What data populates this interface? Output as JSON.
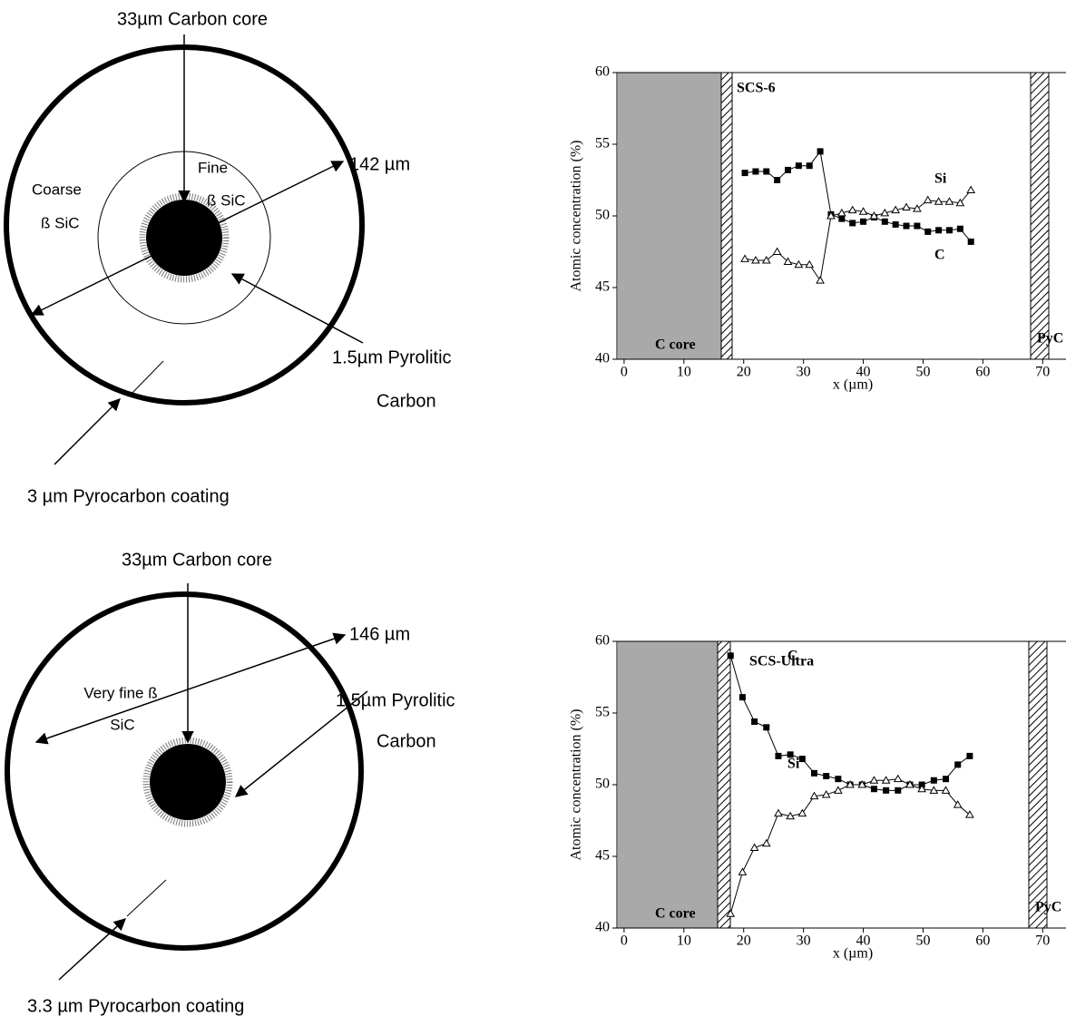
{
  "diagrams": [
    {
      "core_label": "33µm Carbon core",
      "diameter_label": "142 µm",
      "region_labels": [
        "Coarse",
        "ß SiC",
        "Fine",
        "ß SiC"
      ],
      "pyrolitic_label": [
        "1.5µm Pyrolitic",
        "Carbon"
      ],
      "coating_label": "3 µm Pyrocarbon coating"
    },
    {
      "core_label": "33µm Carbon core",
      "diameter_label": "146 µm",
      "region_labels": [
        "Very fine ß",
        "SiC"
      ],
      "pyrolitic_label": [
        "1.5µm Pyrolitic",
        "Carbon"
      ],
      "coating_label": "3.3 µm Pyrocarbon coating"
    }
  ],
  "chart_data": [
    {
      "type": "line",
      "title": "SCS-6",
      "x_label": "x (µm)",
      "y_label": "Atomic concentration (%)",
      "x": [
        20.2,
        22.0,
        23.8,
        25.6,
        27.4,
        29.2,
        31.0,
        32.8,
        34.6,
        36.4,
        38.2,
        40.0,
        41.8,
        43.6,
        45.4,
        47.2,
        49.0,
        50.8,
        52.6,
        54.4,
        56.2,
        58.0
      ],
      "series": [
        {
          "name": "C",
          "color": "#000000",
          "marker": "square",
          "values": [
            53.0,
            53.1,
            53.1,
            52.5,
            53.2,
            53.5,
            53.5,
            54.5,
            50.1,
            49.8,
            49.5,
            49.6,
            49.9,
            49.6,
            49.4,
            49.3,
            49.3,
            48.9,
            49.0,
            49.0,
            49.1,
            48.2
          ]
        },
        {
          "name": "Si",
          "color": "#000000",
          "marker": "triangle",
          "values": [
            47.0,
            46.9,
            46.9,
            47.5,
            46.8,
            46.6,
            46.6,
            45.5,
            50.0,
            50.2,
            50.4,
            50.3,
            50.0,
            50.2,
            50.4,
            50.6,
            50.5,
            51.1,
            51.0,
            51.0,
            50.9,
            51.8
          ]
        }
      ],
      "annotations": [
        "C core",
        "PyC"
      ],
      "xlim": [
        -1.2,
        73.9
      ],
      "ylim": [
        40,
        60
      ],
      "xticks": [
        0,
        10,
        20,
        30,
        40,
        50,
        60,
        70
      ],
      "yticks": [
        40,
        45,
        50,
        55,
        60
      ]
    },
    {
      "type": "line",
      "title": "SCS-Ultra",
      "x_label": "x (µm)",
      "y_label": "Atomic concentration (%)",
      "x": [
        17.8,
        19.8,
        21.8,
        23.8,
        25.8,
        27.8,
        29.8,
        31.8,
        33.8,
        35.8,
        37.8,
        39.8,
        41.8,
        43.8,
        45.8,
        47.8,
        49.8,
        51.8,
        53.8,
        55.8,
        57.8
      ],
      "series": [
        {
          "name": "C",
          "color": "#000000",
          "marker": "square",
          "values": [
            59.0,
            56.1,
            54.4,
            54.0,
            52.0,
            52.1,
            51.8,
            50.8,
            50.6,
            50.4,
            50.0,
            50.0,
            49.7,
            49.6,
            49.6,
            50.0,
            50.0,
            50.3,
            50.4,
            51.4,
            52.0
          ]
        },
        {
          "name": "Si",
          "color": "#000000",
          "marker": "triangle",
          "values": [
            41.0,
            43.9,
            45.6,
            45.9,
            48.0,
            47.8,
            48.0,
            49.2,
            49.3,
            49.6,
            50.0,
            50.0,
            50.3,
            50.3,
            50.4,
            50.0,
            49.7,
            49.6,
            49.6,
            48.6,
            47.9
          ]
        }
      ],
      "annotations": [
        "C core",
        "PyC"
      ],
      "xlim": [
        -1.2,
        73.9
      ],
      "ylim": [
        40,
        60
      ],
      "xticks": [
        0,
        10,
        20,
        30,
        40,
        50,
        60,
        70
      ],
      "yticks": [
        40,
        45,
        50,
        55,
        60
      ]
    }
  ]
}
